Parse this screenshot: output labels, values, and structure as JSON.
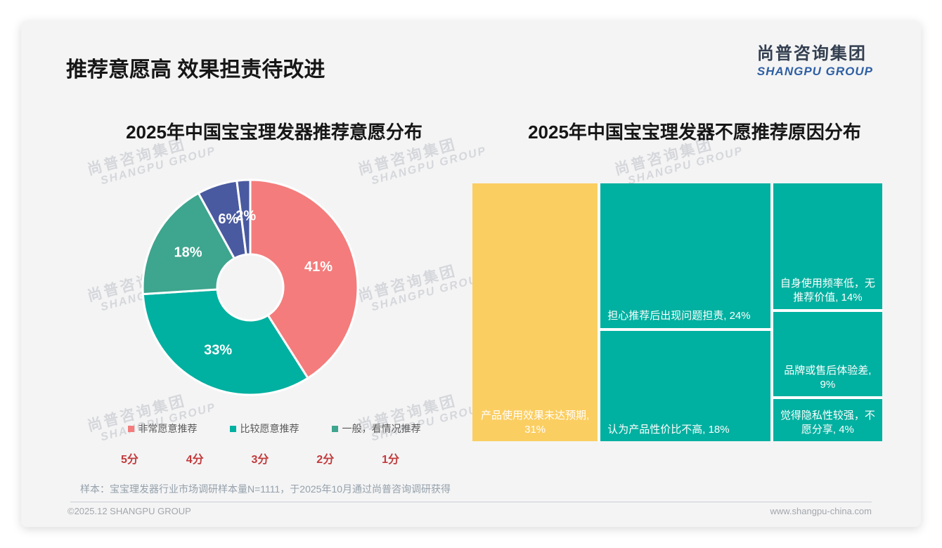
{
  "slide": {
    "title": "推荐意愿高 效果担责待改进",
    "logo": {
      "cn": "尚普咨询集团",
      "en": "SHANGPU GROUP"
    },
    "watermark": {
      "cn": "尚普咨询集团",
      "en": "SHANGPU GROUP"
    },
    "sample_note": "样本：宝宝理发器行业市场调研样本量N=1111，于2025年10月通过尚普咨询调研获得",
    "footer": {
      "copyright": "©2025.12 SHANGPU GROUP",
      "website": "www.shangpu-china.com"
    }
  },
  "chart_data": [
    {
      "type": "pie",
      "subtype": "donut",
      "title": "2025年中国宝宝理发器推荐意愿分布",
      "start_angle_deg": 0,
      "direction": "clockwise",
      "slices": [
        {
          "label": "41%",
          "value": 41,
          "color": "#F47C7C"
        },
        {
          "label": "33%",
          "value": 33,
          "color": "#00B0A0"
        },
        {
          "label": "18%",
          "value": 18,
          "color": "#3EA58E"
        },
        {
          "label": "6%",
          "value": 6,
          "color": "#4A5AA0"
        },
        {
          "label": "2%",
          "value": 2,
          "color": "#4A5AA0"
        }
      ],
      "legend_position": "bottom",
      "legend": [
        {
          "label": "非常愿意推荐",
          "color": "#F47C7C"
        },
        {
          "label": "比较愿意推荐",
          "color": "#00B0A0"
        },
        {
          "label": "一般，看情况推荐",
          "color": "#3EA58E"
        }
      ],
      "score_axis": {
        "labels": [
          "5分",
          "4分",
          "3分",
          "2分",
          "1分"
        ],
        "color": "#C23B3B"
      }
    },
    {
      "type": "treemap",
      "title": "2025年中国宝宝理发器不愿推荐原因分布",
      "columns": [
        {
          "cells": [
            {
              "label": "产品使用效果未达预期,\n31%",
              "value": 31,
              "color": "#FBCE62",
              "align": "center"
            }
          ]
        },
        {
          "cells": [
            {
              "label": "担心推荐后出现问题担责, 24%",
              "value": 24,
              "color": "#00B0A0",
              "align": "left"
            },
            {
              "label": "认为产品性价比不高, 18%",
              "value": 18,
              "color": "#00B0A0",
              "align": "left"
            }
          ]
        },
        {
          "cells": [
            {
              "label": "自身使用频率低，无\n推荐价值, 14%",
              "value": 14,
              "color": "#00B0A0",
              "align": "center"
            },
            {
              "label": "品牌或售后体验差,\n9%",
              "value": 9,
              "color": "#00B0A0",
              "align": "center"
            },
            {
              "label": "觉得隐私性较强，不\n愿分享, 4%",
              "value": 4,
              "color": "#00B0A0",
              "align": "center"
            }
          ]
        }
      ]
    }
  ]
}
